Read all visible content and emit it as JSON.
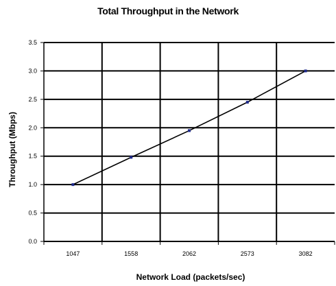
{
  "chart_data": {
    "type": "line",
    "title": "Total Throughput in the Network",
    "xlabel": "Network Load (packets/sec)",
    "ylabel": "Throughput (Mbps)",
    "categories": [
      "1047",
      "1558",
      "2062",
      "2573",
      "3082"
    ],
    "series": [
      {
        "values": [
          1.0,
          1.48,
          1.95,
          2.45,
          3.0
        ]
      }
    ],
    "ylim": [
      0,
      3.5
    ],
    "yticks": [
      "0.0",
      "0.5",
      "1.0",
      "1.5",
      "2.0",
      "2.5",
      "3.0",
      "3.5"
    ],
    "grid": true,
    "legend": "none",
    "colors": {
      "line": "#000000",
      "marker": "#1f2a8c",
      "grid": "#000000"
    }
  }
}
